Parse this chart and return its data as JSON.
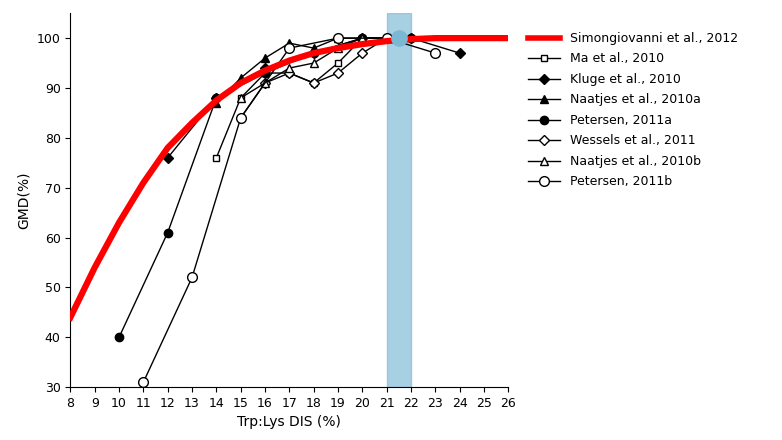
{
  "xlabel": "Trp:Lys DIS (%)",
  "ylabel": "GMD(%)",
  "xlim": [
    8,
    26
  ],
  "ylim": [
    30,
    105
  ],
  "xticks": [
    8,
    9,
    10,
    11,
    12,
    13,
    14,
    15,
    16,
    17,
    18,
    19,
    20,
    21,
    22,
    23,
    24,
    25,
    26
  ],
  "yticks": [
    30,
    40,
    50,
    60,
    70,
    80,
    90,
    100
  ],
  "blue_band": [
    21,
    22
  ],
  "blue_band_color": "#7ab8d4",
  "blue_band_alpha": 0.65,
  "simongiovanni_x": [
    8,
    9,
    10,
    11,
    12,
    13,
    14,
    15,
    16,
    17,
    18,
    19,
    20,
    21,
    22,
    23,
    24,
    25,
    26
  ],
  "simongiovanni_y": [
    44,
    54,
    63,
    71,
    78,
    83,
    87.5,
    91,
    93.5,
    95.5,
    97,
    98,
    98.8,
    99.4,
    99.8,
    100,
    100,
    100,
    100
  ],
  "ma_x": [
    14,
    15,
    16,
    17,
    18,
    19,
    20,
    21
  ],
  "ma_y": [
    76,
    88,
    93,
    93,
    91,
    95,
    100,
    100
  ],
  "kluge_x": [
    12,
    14,
    16,
    18,
    20,
    22,
    24
  ],
  "kluge_y": [
    76,
    88,
    94,
    97,
    100,
    100,
    97
  ],
  "naatjes_a_x": [
    14,
    15,
    16,
    17,
    18,
    19,
    20
  ],
  "naatjes_a_y": [
    87,
    92,
    96,
    99,
    98,
    100,
    100
  ],
  "petersen_a_x": [
    10,
    12,
    14,
    16,
    18,
    20,
    22
  ],
  "petersen_a_y": [
    40,
    61,
    88,
    93,
    97,
    100,
    100
  ],
  "wessels_x": [
    15,
    16,
    17,
    18,
    19,
    20,
    21
  ],
  "wessels_y": [
    84,
    91,
    93,
    91,
    93,
    97,
    100
  ],
  "naatjes_b_x": [
    15,
    16,
    17,
    18,
    19,
    20,
    21
  ],
  "naatjes_b_y": [
    88,
    91,
    94,
    95,
    98,
    100,
    100
  ],
  "petersen_b_x": [
    11,
    13,
    15,
    17,
    19,
    21,
    23
  ],
  "petersen_b_y": [
    31,
    52,
    84,
    98,
    100,
    100,
    97
  ],
  "highlight_point_x": 21.5,
  "highlight_point_y": 100,
  "highlight_color": "#7ab8d4"
}
